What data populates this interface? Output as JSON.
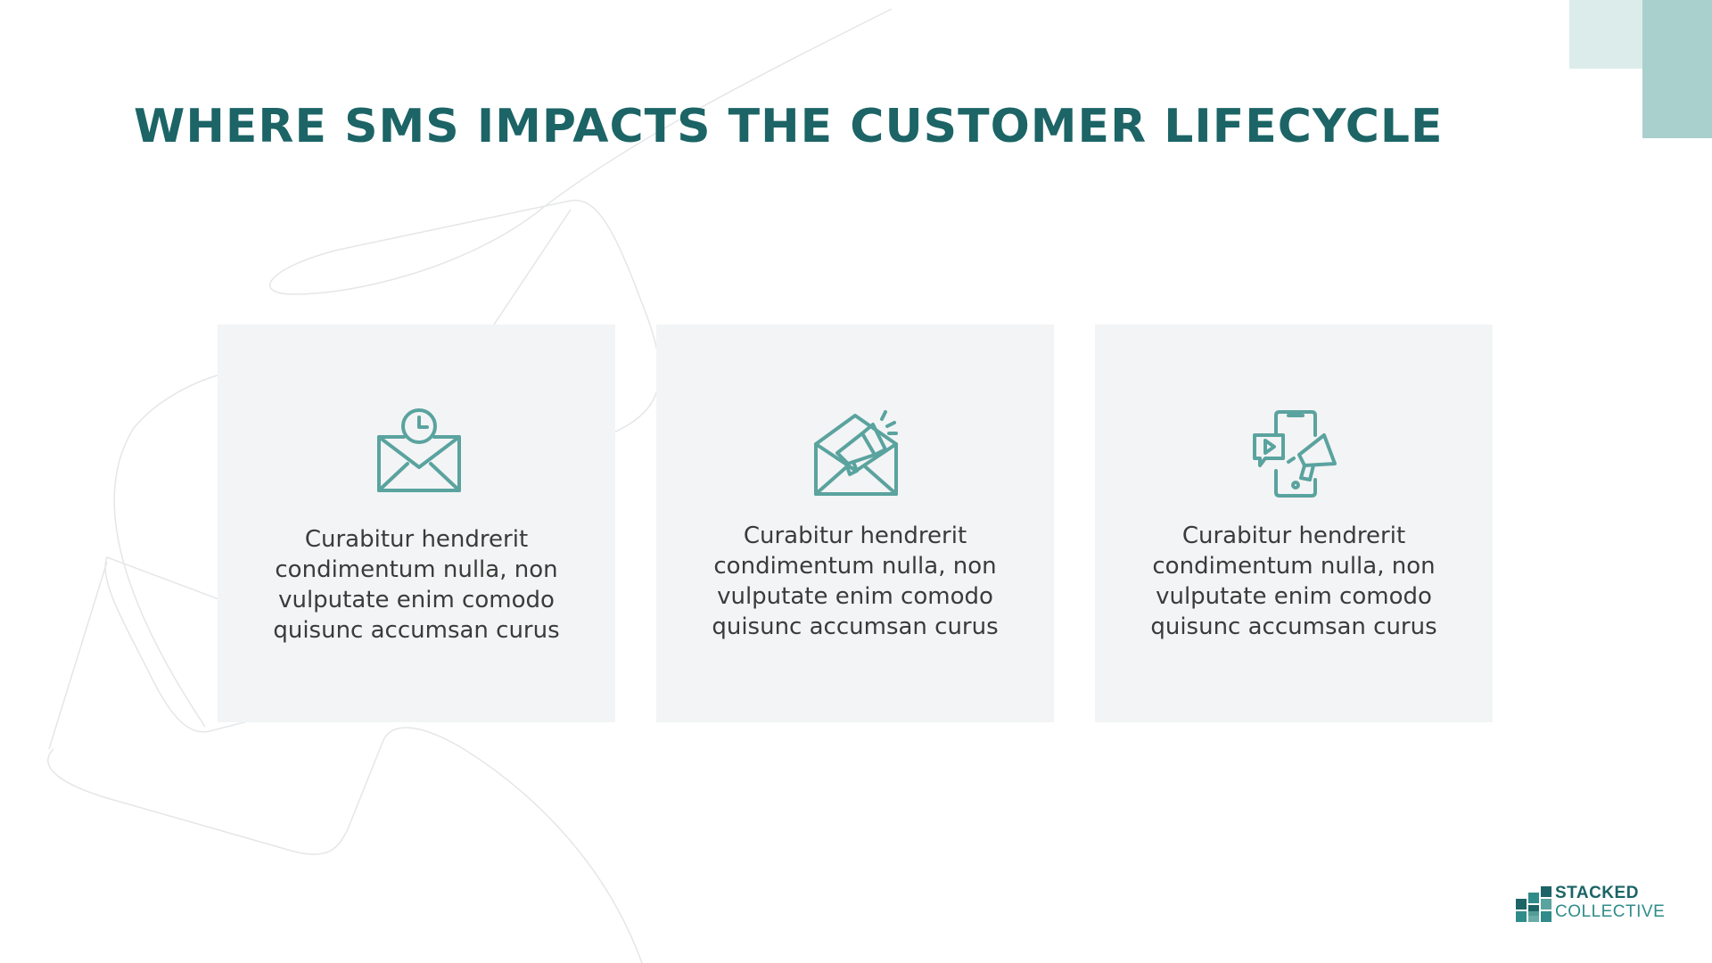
{
  "slide": {
    "title": "WHERE SMS IMPACTS THE CUSTOMER LIFECYCLE"
  },
  "cards": [
    {
      "icon": "envelope-clock-icon",
      "text": "Curabitur hendrerit condimentum nulla, non vulputate enim comodo quisunc accumsan curus"
    },
    {
      "icon": "envelope-megaphone-icon",
      "text": "Curabitur hendrerit condimentum nulla, non vulputate enim comodo quisunc accumsan curus"
    },
    {
      "icon": "phone-megaphone-icon",
      "text": "Curabitur hendrerit condimentum nulla, non vulputate enim comodo quisunc accumsan curus"
    }
  ],
  "logo": {
    "line1": "STACKED",
    "line2": "COLLECTIVE"
  },
  "colors": {
    "title": "#1c6466",
    "icon": "#5aa39f",
    "card_bg": "#f3f4f5",
    "accent_light": "#dcecea",
    "accent_mid": "#a9d0cc"
  }
}
